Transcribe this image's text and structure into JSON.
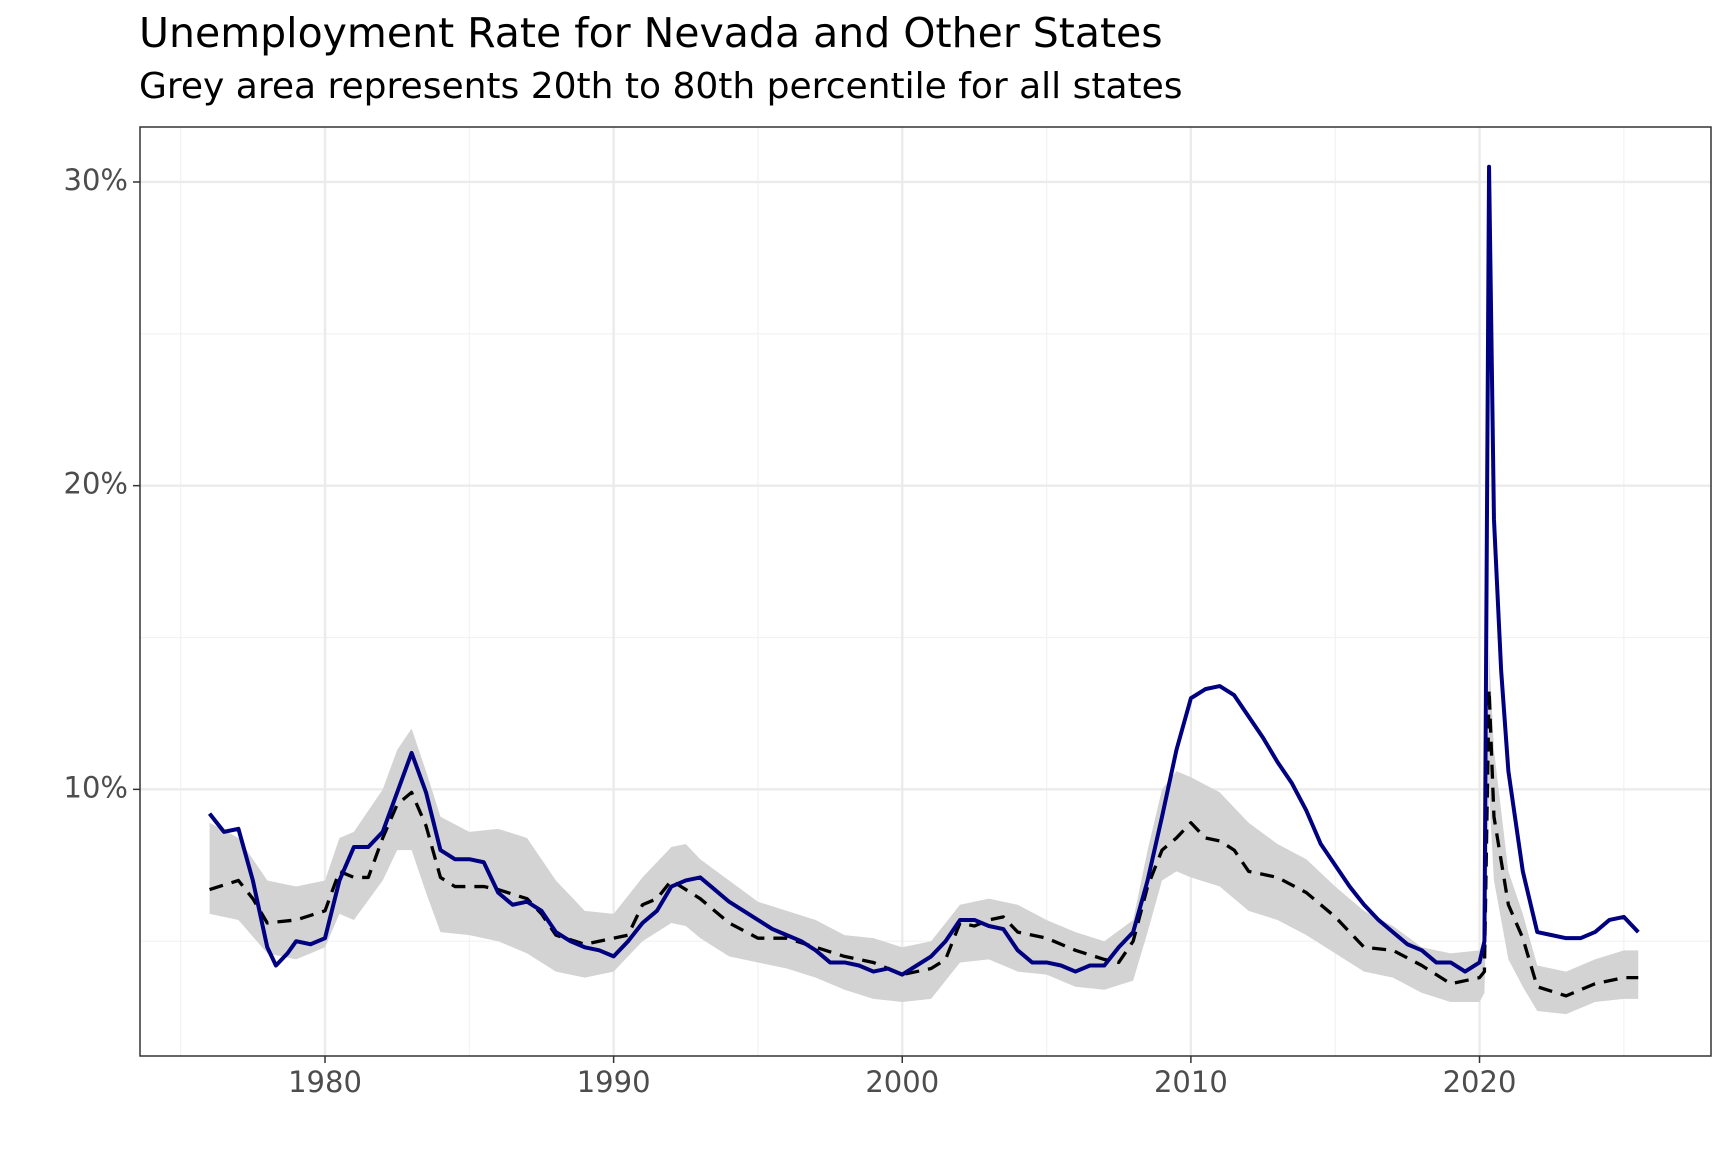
{
  "chart_data": {
    "type": "line",
    "title": "Unemployment Rate for Nevada and Other States",
    "subtitle": "Grey area represents 20th to 80th percentile for all states",
    "xlim": [
      1973.59,
      2028.02
    ],
    "xticks": [
      1980,
      1990,
      2000,
      2010,
      2020
    ],
    "xminor": [
      1975,
      1985,
      1995,
      2005,
      2015,
      2025
    ],
    "ylim": [
      1.22,
      31.81
    ],
    "yticks": [
      {
        "value": 10,
        "label": "10%"
      },
      {
        "value": 20,
        "label": "20%"
      },
      {
        "value": 30,
        "label": "30%"
      }
    ],
    "yminor": [
      5,
      15,
      25
    ],
    "grid": true,
    "band": {
      "color": "#d3d3d3",
      "x": [
        1976,
        1977,
        1978,
        1979,
        1980,
        1980.5,
        1981,
        1982,
        1982.5,
        1983,
        1983.5,
        1984,
        1985,
        1986,
        1987,
        1988,
        1989,
        1990,
        1991,
        1992,
        1992.5,
        1993,
        1994,
        1995,
        1996,
        1997,
        1998,
        1999,
        2000,
        2001,
        2002,
        2003,
        2004,
        2005,
        2006,
        2007,
        2008,
        2008.5,
        2009,
        2009.5,
        2010,
        2011,
        2012,
        2013,
        2014,
        2015,
        2016,
        2017,
        2018,
        2019,
        2020,
        2020.17,
        2020.33,
        2020.5,
        2021,
        2021.5,
        2022,
        2023,
        2024,
        2025,
        2025.5
      ],
      "upper": [
        8.9,
        8.4,
        7.0,
        6.8,
        7.0,
        8.4,
        8.6,
        10.0,
        11.3,
        12.0,
        10.6,
        9.1,
        8.6,
        8.7,
        8.4,
        7.0,
        6.0,
        5.9,
        7.1,
        8.1,
        8.2,
        7.7,
        7.0,
        6.3,
        6.0,
        5.7,
        5.2,
        5.1,
        4.8,
        5.0,
        6.2,
        6.4,
        6.2,
        5.7,
        5.3,
        5.0,
        5.7,
        8.0,
        10.0,
        10.6,
        10.4,
        9.9,
        8.9,
        8.2,
        7.7,
        6.8,
        6.0,
        5.5,
        4.8,
        4.6,
        4.7,
        5.0,
        14.6,
        11.3,
        7.3,
        5.9,
        4.2,
        4.0,
        4.4,
        4.7,
        4.7
      ],
      "lower": [
        5.9,
        5.7,
        4.6,
        4.4,
        4.8,
        5.9,
        5.7,
        7.0,
        8.0,
        8.0,
        6.6,
        5.3,
        5.2,
        5.0,
        4.6,
        4.0,
        3.8,
        4.0,
        5.0,
        5.6,
        5.5,
        5.1,
        4.5,
        4.3,
        4.1,
        3.8,
        3.4,
        3.1,
        3.0,
        3.1,
        4.3,
        4.4,
        4.0,
        3.9,
        3.5,
        3.4,
        3.7,
        5.3,
        7.0,
        7.3,
        7.1,
        6.8,
        6.0,
        5.7,
        5.2,
        4.6,
        4.0,
        3.8,
        3.3,
        3.0,
        3.0,
        3.3,
        9.9,
        7.0,
        4.4,
        3.5,
        2.7,
        2.6,
        3.0,
        3.1,
        3.1
      ]
    },
    "series": [
      {
        "color": "#000080",
        "dash": false,
        "width": 4,
        "x": [
          1976,
          1976.5,
          1977,
          1977.5,
          1978,
          1978.3,
          1978.7,
          1979,
          1979.5,
          1980,
          1980.5,
          1981,
          1981.5,
          1982,
          1982.5,
          1983,
          1983.5,
          1984,
          1984.5,
          1985,
          1985.5,
          1986,
          1986.5,
          1987,
          1987.5,
          1988,
          1988.5,
          1989,
          1989.5,
          1990,
          1990.5,
          1991,
          1991.5,
          1992,
          1992.5,
          1993,
          1993.5,
          1994,
          1994.5,
          1995,
          1995.5,
          1996,
          1996.5,
          1997,
          1997.5,
          1998,
          1998.5,
          1999,
          1999.5,
          2000,
          2000.5,
          2001,
          2001.5,
          2002,
          2002.5,
          2003,
          2003.5,
          2004,
          2004.5,
          2005,
          2005.5,
          2006,
          2006.5,
          2007,
          2007.5,
          2008,
          2008.5,
          2009,
          2009.5,
          2010,
          2010.5,
          2011,
          2011.5,
          2012,
          2012.5,
          2013,
          2013.5,
          2014,
          2014.5,
          2015,
          2015.5,
          2016,
          2016.5,
          2017,
          2017.5,
          2018,
          2018.5,
          2019,
          2019.5,
          2020,
          2020.17,
          2020.33,
          2020.5,
          2020.75,
          2021,
          2021.5,
          2022,
          2022.5,
          2023,
          2023.5,
          2024,
          2024.5,
          2025,
          2025.5
        ],
        "values": [
          9.2,
          8.6,
          8.7,
          7.0,
          4.8,
          4.2,
          4.6,
          5.0,
          4.9,
          5.1,
          7.0,
          8.1,
          8.1,
          8.6,
          9.9,
          11.2,
          9.9,
          8.0,
          7.7,
          7.7,
          7.6,
          6.6,
          6.2,
          6.3,
          6.0,
          5.3,
          5.0,
          4.8,
          4.7,
          4.5,
          5.0,
          5.6,
          6.0,
          6.8,
          7.0,
          7.1,
          6.7,
          6.3,
          6.0,
          5.7,
          5.4,
          5.2,
          5.0,
          4.7,
          4.3,
          4.3,
          4.2,
          4.0,
          4.1,
          3.9,
          4.2,
          4.5,
          5.0,
          5.7,
          5.7,
          5.5,
          5.4,
          4.7,
          4.3,
          4.3,
          4.2,
          4.0,
          4.2,
          4.2,
          4.8,
          5.3,
          7.0,
          9.1,
          11.3,
          13.0,
          13.3,
          13.4,
          13.1,
          12.4,
          11.7,
          10.9,
          10.2,
          9.3,
          8.2,
          7.5,
          6.8,
          6.2,
          5.7,
          5.3,
          4.9,
          4.7,
          4.3,
          4.3,
          4.0,
          4.3,
          5.0,
          30.5,
          18.9,
          13.9,
          10.6,
          7.3,
          5.3,
          5.2,
          5.1,
          5.1,
          5.3,
          5.7,
          5.8,
          5.3
        ]
      },
      {
        "color": "#000000",
        "dash": true,
        "width": 3.3,
        "x": [
          1976,
          1977,
          1977.5,
          1978,
          1979,
          1980,
          1980.5,
          1981,
          1981.5,
          1982,
          1982.5,
          1983,
          1983.5,
          1984,
          1984.5,
          1985.5,
          1986,
          1987,
          1987.5,
          1988,
          1989,
          1990,
          1990.5,
          1991,
          1991.5,
          1992,
          1992.5,
          1993,
          1994,
          1995,
          1996,
          1997,
          1998,
          1999,
          2000,
          2001,
          2001.5,
          2002,
          2002.5,
          2003,
          2003.5,
          2004,
          2005,
          2006,
          2007,
          2007.5,
          2008,
          2008.5,
          2009,
          2009.5,
          2010,
          2010.5,
          2011,
          2011.5,
          2012,
          2013,
          2014,
          2015,
          2016,
          2017,
          2018,
          2019,
          2020,
          2020.17,
          2020.33,
          2020.5,
          2021,
          2021.5,
          2022,
          2023,
          2023.5,
          2024,
          2025,
          2025.5
        ],
        "values": [
          6.7,
          7.0,
          6.4,
          5.6,
          5.7,
          6.0,
          7.3,
          7.1,
          7.1,
          8.4,
          9.5,
          9.9,
          8.8,
          7.1,
          6.8,
          6.8,
          6.7,
          6.4,
          5.9,
          5.2,
          4.9,
          5.1,
          5.2,
          6.2,
          6.4,
          7.0,
          6.7,
          6.4,
          5.6,
          5.1,
          5.1,
          4.8,
          4.5,
          4.3,
          3.9,
          4.1,
          4.4,
          5.6,
          5.5,
          5.7,
          5.8,
          5.3,
          5.1,
          4.7,
          4.4,
          4.3,
          5.0,
          6.8,
          8.0,
          8.4,
          8.9,
          8.4,
          8.3,
          8.0,
          7.3,
          7.1,
          6.6,
          5.8,
          4.8,
          4.7,
          4.2,
          3.6,
          3.8,
          4.0,
          13.3,
          9.1,
          6.2,
          5.1,
          3.5,
          3.2,
          3.4,
          3.6,
          3.8,
          3.8
        ]
      }
    ]
  }
}
